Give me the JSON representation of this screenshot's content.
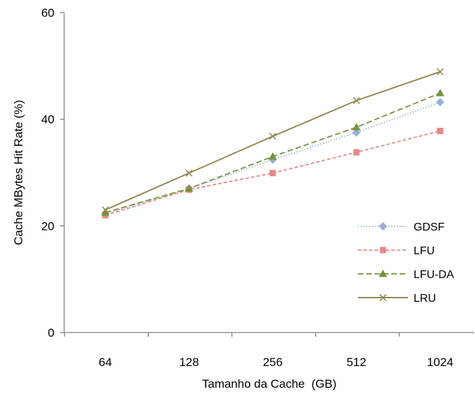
{
  "chart_data": {
    "type": "line",
    "title": "",
    "xlabel": "Tamanho da Cache  (GB)",
    "ylabel": "Cache MBytes Hit Rate (%)",
    "categories": [
      "64",
      "128",
      "256",
      "512",
      "1024"
    ],
    "ylim": [
      0,
      60
    ],
    "yticks": [
      "0",
      "20",
      "40",
      "60"
    ],
    "grid": false,
    "legend_position": "bottom-right",
    "series": [
      {
        "name": "GDSF",
        "values": [
          22.3,
          27.0,
          32.4,
          37.5,
          43.2
        ],
        "color": "#95b3d7",
        "dash": "dotted",
        "marker": "diamond"
      },
      {
        "name": "LFU",
        "values": [
          22.0,
          26.8,
          29.9,
          33.8,
          37.8
        ],
        "color": "#e6898a",
        "dash": "dashed",
        "marker": "square"
      },
      {
        "name": "LFU-DA",
        "values": [
          22.5,
          27.0,
          33.0,
          38.5,
          44.9
        ],
        "color": "#77933c",
        "dash": "longdash",
        "marker": "triangle"
      },
      {
        "name": "LRU",
        "values": [
          23.0,
          29.9,
          36.8,
          43.5,
          48.9
        ],
        "color": "#948a54",
        "dash": "solid",
        "marker": "x"
      }
    ]
  }
}
